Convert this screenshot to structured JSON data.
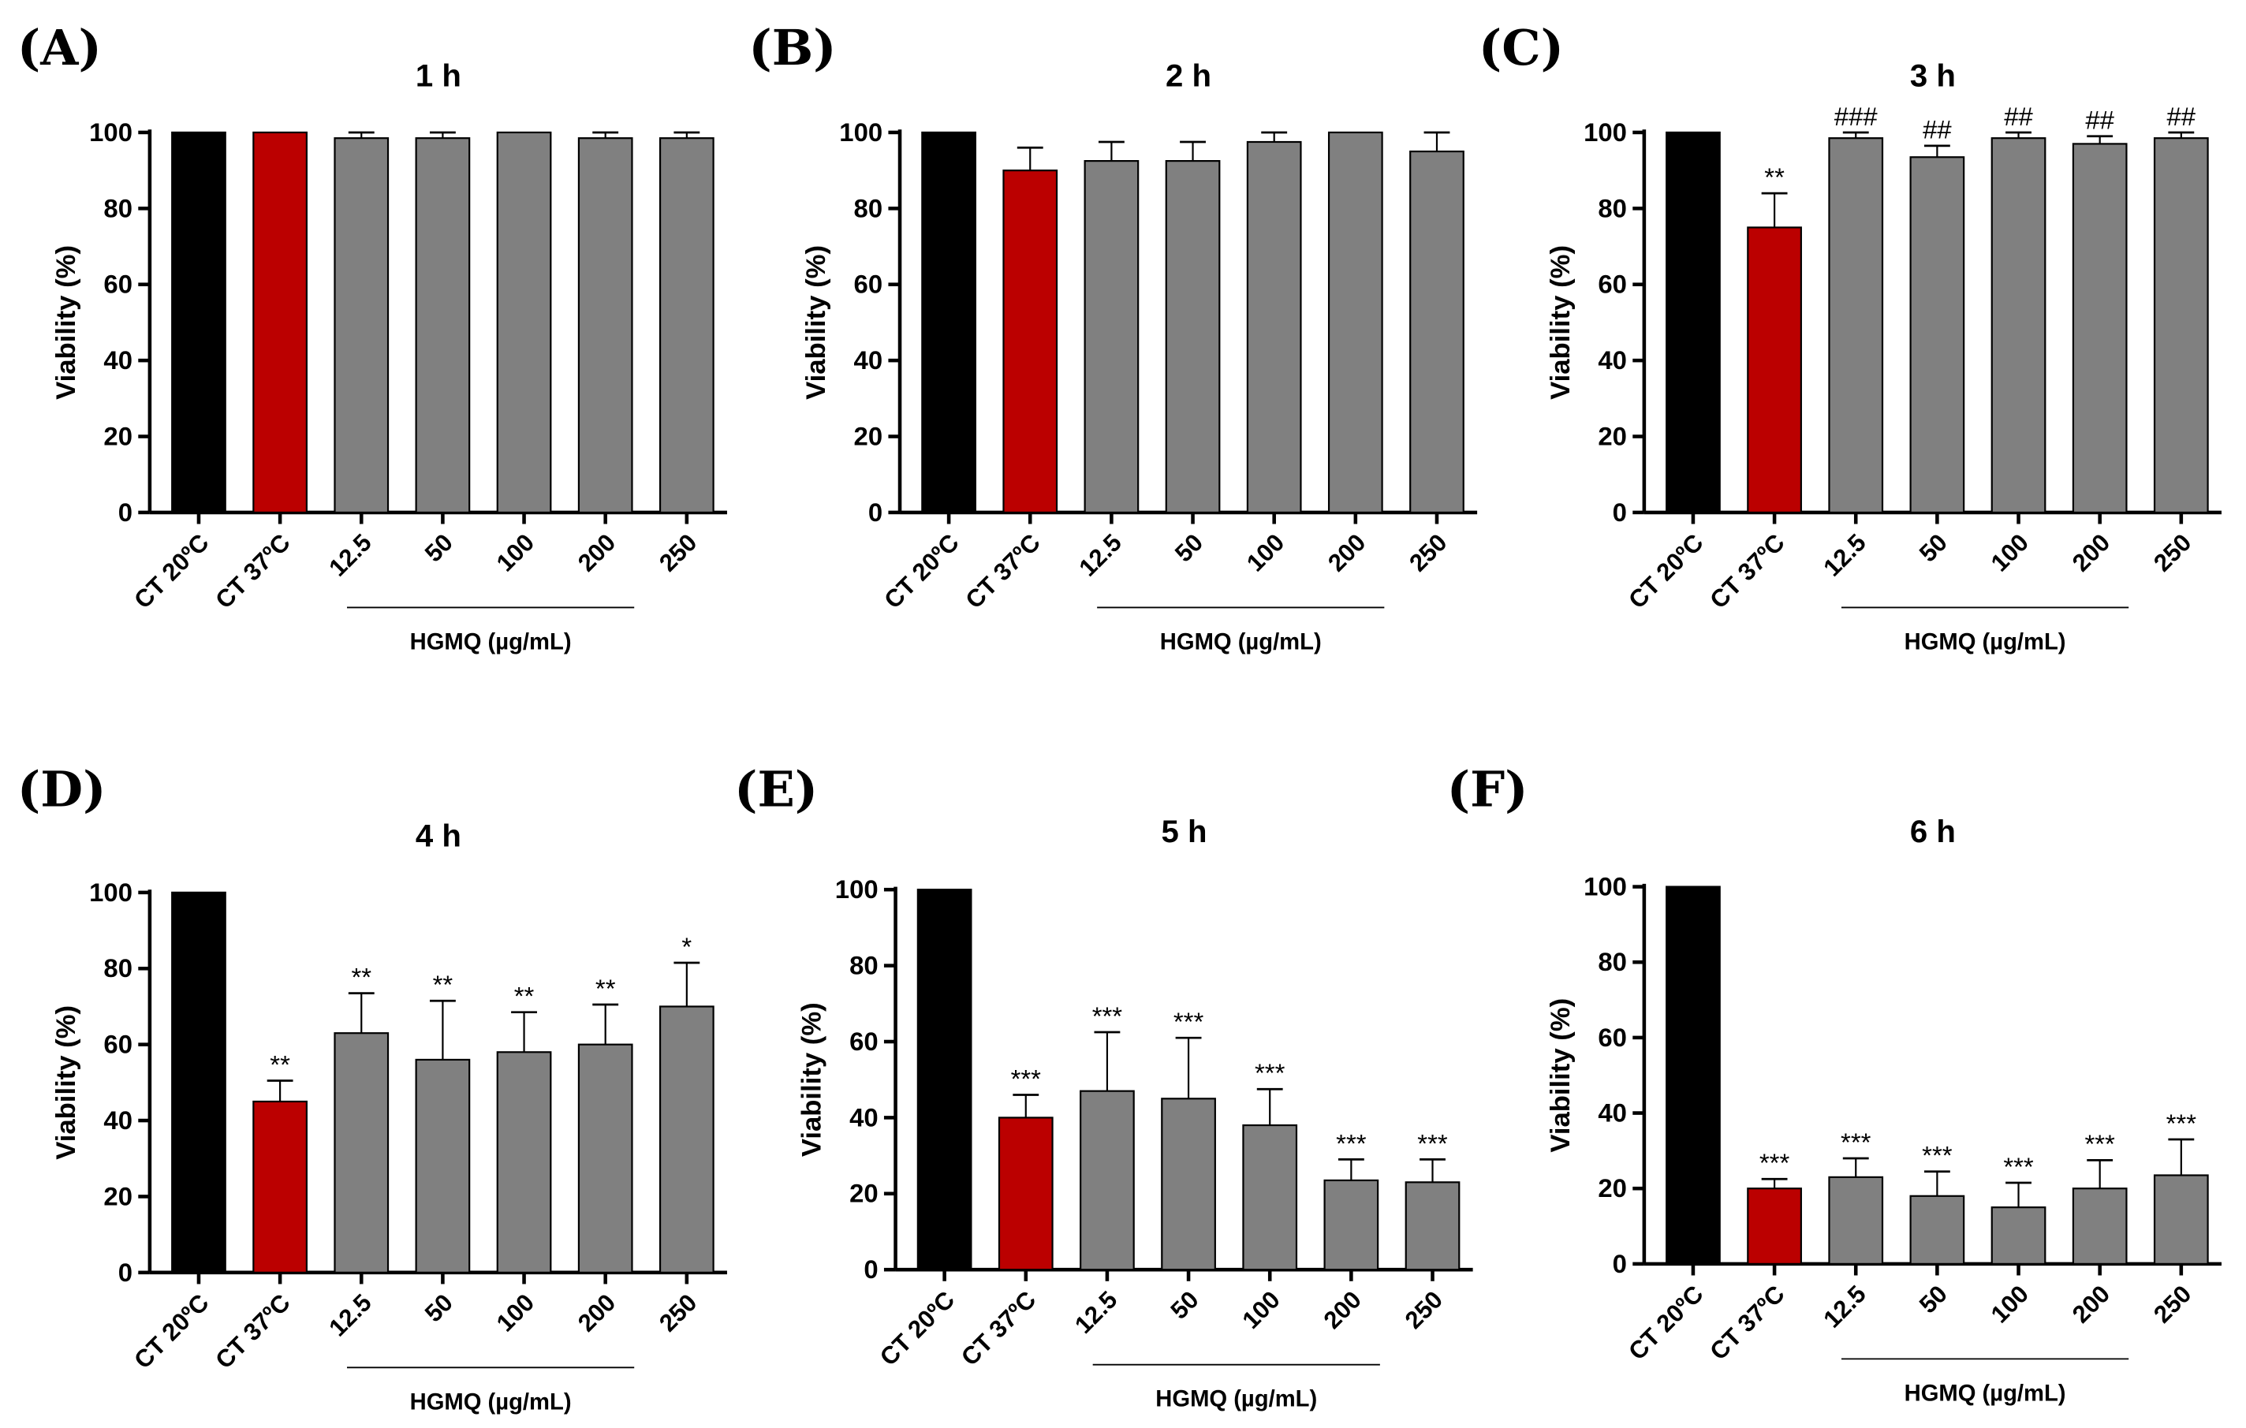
{
  "chart_data": [
    {
      "type": "bar",
      "panel": "(A)",
      "title": "1 h",
      "ylabel": "Viability (%)",
      "xlabel": "HGMQ (µg/mL)",
      "ylim": [
        0,
        100
      ],
      "yticks": [
        0,
        20,
        40,
        60,
        80,
        100
      ],
      "categories": [
        "CT 20ºC",
        "CT 37ºC",
        "12.5",
        "50",
        "100",
        "200",
        "250"
      ],
      "values": [
        100,
        100,
        98.5,
        98.5,
        100,
        98.5,
        98.5
      ],
      "errors": [
        0,
        0,
        1.5,
        1.5,
        0,
        1.5,
        1.5
      ],
      "annotations": [
        "",
        "",
        "",
        "",
        "",
        "",
        ""
      ]
    },
    {
      "type": "bar",
      "panel": "(B)",
      "title": "2 h",
      "ylabel": "Viability (%)",
      "xlabel": "HGMQ (µg/mL)",
      "ylim": [
        0,
        100
      ],
      "yticks": [
        0,
        20,
        40,
        60,
        80,
        100
      ],
      "categories": [
        "CT 20ºC",
        "CT 37ºC",
        "12.5",
        "50",
        "100",
        "200",
        "250"
      ],
      "values": [
        100,
        90,
        92.5,
        92.5,
        97.5,
        100,
        95
      ],
      "errors": [
        0,
        6,
        5,
        5,
        2.5,
        0,
        5
      ],
      "annotations": [
        "",
        "",
        "",
        "",
        "",
        "",
        ""
      ]
    },
    {
      "type": "bar",
      "panel": "(C)",
      "title": "3 h",
      "ylabel": "Viability (%)",
      "xlabel": "HGMQ (µg/mL)",
      "ylim": [
        0,
        100
      ],
      "yticks": [
        0,
        20,
        40,
        60,
        80,
        100
      ],
      "categories": [
        "CT 20ºC",
        "CT 37ºC",
        "12.5",
        "50",
        "100",
        "200",
        "250"
      ],
      "values": [
        100,
        75,
        98.5,
        93.5,
        98.5,
        97,
        98.5
      ],
      "errors": [
        0,
        9,
        1.5,
        3,
        1.5,
        2,
        1.5
      ],
      "annotations": [
        "",
        "**",
        "###",
        "##",
        "##",
        "##",
        "##"
      ]
    },
    {
      "type": "bar",
      "panel": "(D)",
      "title": "4 h",
      "ylabel": "Viability (%)",
      "xlabel": "HGMQ (µg/mL)",
      "ylim": [
        0,
        100
      ],
      "yticks": [
        0,
        20,
        40,
        60,
        80,
        100
      ],
      "categories": [
        "CT 20ºC",
        "CT 37ºC",
        "12.5",
        "50",
        "100",
        "200",
        "250"
      ],
      "values": [
        100,
        45,
        63,
        56,
        58,
        60,
        70
      ],
      "errors": [
        0,
        5.5,
        10.5,
        15.5,
        10.5,
        10.5,
        11.5
      ],
      "annotations": [
        "",
        "**",
        "**",
        "**",
        "**",
        "**",
        "*"
      ]
    },
    {
      "type": "bar",
      "panel": "(E)",
      "title": "5 h",
      "ylabel": "Viability (%)",
      "xlabel": "HGMQ (µg/mL)",
      "ylim": [
        0,
        100
      ],
      "yticks": [
        0,
        20,
        40,
        60,
        80,
        100
      ],
      "categories": [
        "CT 20ºC",
        "CT 37ºC",
        "12.5",
        "50",
        "100",
        "200",
        "250"
      ],
      "values": [
        100,
        40,
        47,
        45,
        38,
        23.5,
        23
      ],
      "errors": [
        0,
        6,
        15.5,
        16,
        9.5,
        5.5,
        6
      ],
      "annotations": [
        "",
        "***",
        "***",
        "***",
        "***",
        "***",
        "***"
      ]
    },
    {
      "type": "bar",
      "panel": "(F)",
      "title": "6 h",
      "ylabel": "Viability (%)",
      "xlabel": "HGMQ (µg/mL)",
      "ylim": [
        0,
        100
      ],
      "yticks": [
        0,
        20,
        40,
        60,
        80,
        100
      ],
      "categories": [
        "CT 20ºC",
        "CT 37ºC",
        "12.5",
        "50",
        "100",
        "200",
        "250"
      ],
      "values": [
        100,
        20,
        23,
        18,
        15,
        20,
        23.5
      ],
      "errors": [
        0,
        2.5,
        5,
        6.5,
        6.5,
        7.5,
        9.5
      ],
      "annotations": [
        "",
        "***",
        "***",
        "***",
        "***",
        "***",
        "***"
      ]
    }
  ],
  "colors": {
    "control_20": "#000000",
    "control_37": "#bb0000",
    "treatment": "#808080"
  }
}
